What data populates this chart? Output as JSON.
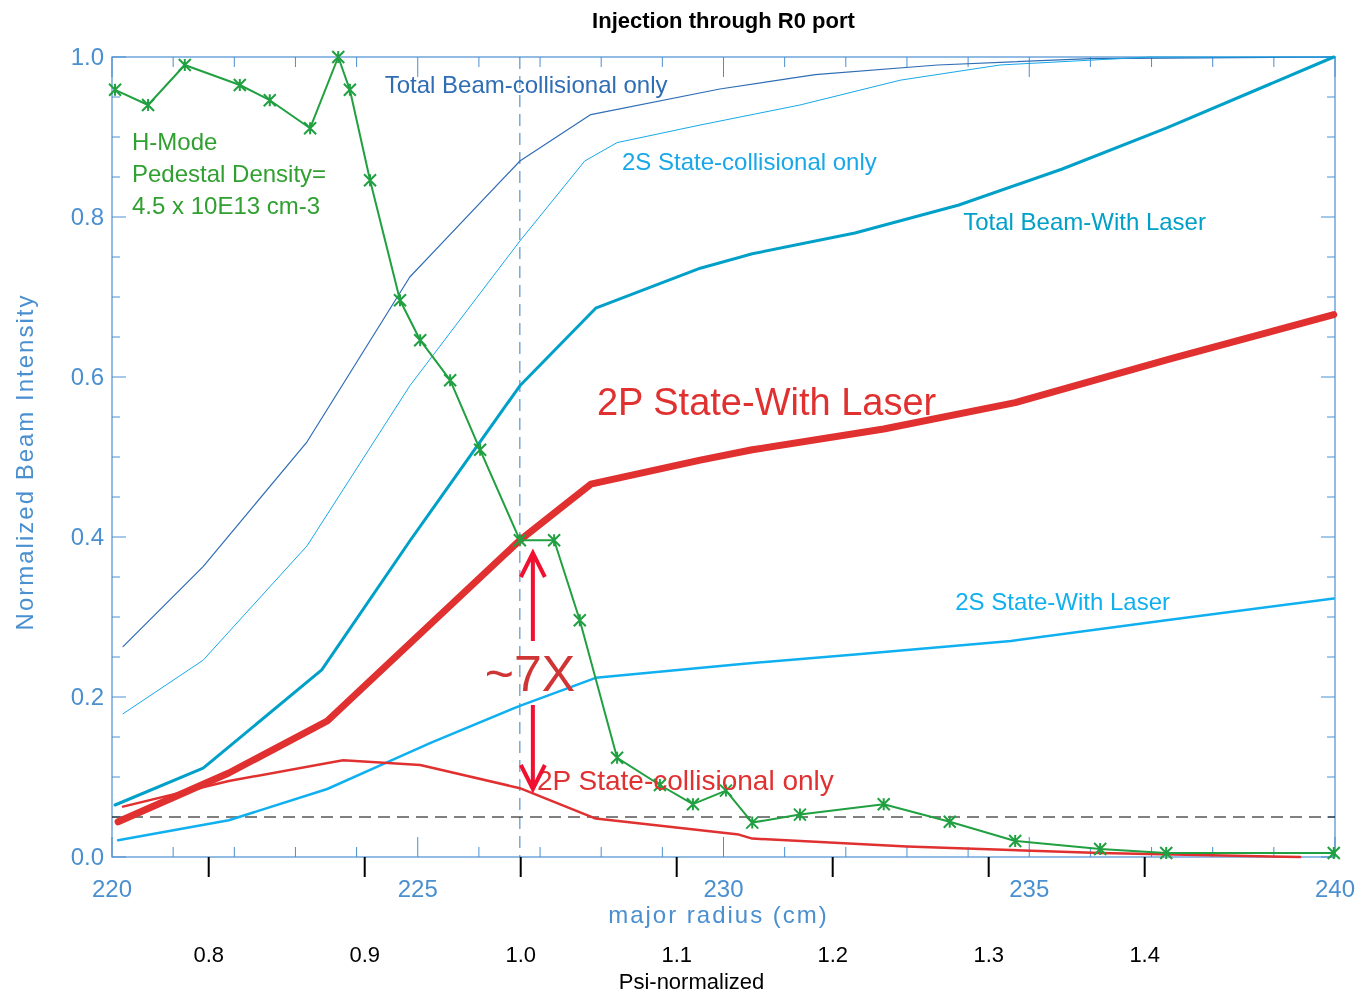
{
  "chart_data": {
    "type": "line",
    "title": "Injection through R0 port",
    "xlabel": "major radius (cm)",
    "ylabel": "Normalized Beam Intensity",
    "x2label": "Psi-normalized",
    "xlim": [
      220,
      240
    ],
    "xticks": [
      220,
      {
        "value": 221,
        "label": null
      },
      {
        "value": 222,
        "label": null
      },
      {
        "value": 223,
        "label": null
      },
      {
        "value": 224,
        "label": null
      },
      225,
      {
        "value": 226,
        "label": null
      },
      {
        "value": 227,
        "label": null
      },
      {
        "value": 228,
        "label": null
      },
      {
        "value": 229,
        "label": null
      },
      230,
      {
        "value": 231,
        "label": null
      },
      {
        "value": 232,
        "label": null
      },
      {
        "value": 233,
        "label": null
      },
      {
        "value": 234,
        "label": null
      },
      235,
      {
        "value": 236,
        "label": null
      },
      {
        "value": 237,
        "label": null
      },
      {
        "value": 238,
        "label": null
      },
      {
        "value": 239,
        "label": null
      },
      240
    ],
    "x2lim": [
      0.738,
      1.522
    ],
    "x2ticks": [
      {
        "value": 0.8,
        "label": "0.8"
      },
      {
        "value": 0.9,
        "label": "0.9"
      },
      {
        "value": 1.0,
        "label": "1.0"
      },
      {
        "value": 1.1,
        "label": "1.1"
      },
      {
        "value": 1.2,
        "label": "1.2"
      },
      {
        "value": 1.3,
        "label": "1.3"
      },
      {
        "value": 1.4,
        "label": "1.4"
      }
    ],
    "ylim": [
      0,
      1
    ],
    "yticks": [
      {
        "value": 0,
        "label": "0.0"
      },
      {
        "value": 0.05,
        "label": null
      },
      {
        "value": 0.1,
        "label": null
      },
      {
        "value": 0.15,
        "label": null
      },
      {
        "value": 0.2,
        "label": "0.2"
      },
      {
        "value": 0.25,
        "label": null
      },
      {
        "value": 0.3,
        "label": null
      },
      {
        "value": 0.35,
        "label": null
      },
      {
        "value": 0.4,
        "label": "0.4"
      },
      {
        "value": 0.45,
        "label": null
      },
      {
        "value": 0.5,
        "label": null
      },
      {
        "value": 0.55,
        "label": null
      },
      {
        "value": 0.6,
        "label": "0.6"
      },
      {
        "value": 0.65,
        "label": null
      },
      {
        "value": 0.7,
        "label": null
      },
      {
        "value": 0.75,
        "label": null
      },
      {
        "value": 0.8,
        "label": "0.8"
      },
      {
        "value": 0.85,
        "label": null
      },
      {
        "value": 0.9,
        "label": null
      },
      {
        "value": 0.95,
        "label": null
      },
      {
        "value": 1.0,
        "label": "1.0"
      }
    ],
    "grid": false,
    "marker": "none",
    "line_style": "solid",
    "series": [
      {
        "name": "Total Beam-collisional only",
        "color": "#2f6db5",
        "x": [
          220.18,
          221.49,
          223.19,
          224.87,
          226.67,
          227.83,
          229.94,
          231.5,
          233.5,
          236,
          240
        ],
        "values": [
          0.263,
          0.363,
          0.519,
          0.725,
          0.87,
          0.928,
          0.96,
          0.978,
          0.99,
          0.998,
          1.0
        ]
      },
      {
        "name": "2S State-collisional only",
        "color": "#18a8e8",
        "x": [
          220.18,
          221.49,
          223.19,
          224.87,
          226.67,
          227.73,
          228.26,
          229.62,
          231.25,
          232.89,
          234.52,
          236.97,
          240
        ],
        "values": [
          0.179,
          0.246,
          0.389,
          0.589,
          0.77,
          0.87,
          0.893,
          0.915,
          0.94,
          0.971,
          0.99,
          1.0,
          1.0
        ]
      },
      {
        "name": "Total Beam-With Laser",
        "color": "#00a0c8",
        "x": [
          220.05,
          221.49,
          223.43,
          224.87,
          226.67,
          227.91,
          229.62,
          230.47,
          232.15,
          233.85,
          235.54,
          237.24,
          239.98
        ],
        "values": [
          0.065,
          0.111,
          0.234,
          0.395,
          0.589,
          0.686,
          0.736,
          0.754,
          0.78,
          0.815,
          0.86,
          0.911,
          1.0
        ]
      },
      {
        "name": "2P State-With Laser",
        "color": "#e03030",
        "x": [
          220.1,
          221.91,
          223.52,
          225.04,
          226.67,
          227.83,
          229.62,
          230.47,
          232.62,
          234.77,
          237.32,
          239.98
        ],
        "values": [
          0.044,
          0.105,
          0.17,
          0.279,
          0.396,
          0.466,
          0.496,
          0.509,
          0.535,
          0.568,
          0.623,
          0.678
        ]
      },
      {
        "name": "2S State-With Laser",
        "color": "#10b0f0",
        "x": [
          220.1,
          221.91,
          223.52,
          225.22,
          226.67,
          227.91,
          230.25,
          232.15,
          234.7,
          237.24,
          239.98
        ],
        "values": [
          0.021,
          0.046,
          0.085,
          0.143,
          0.189,
          0.224,
          0.241,
          0.253,
          0.27,
          0.296,
          0.323
        ]
      },
      {
        "name": "2P State-collisional only",
        "color": "#e03030",
        "x": [
          220.18,
          221.91,
          223.78,
          225.04,
          226.67,
          227.91,
          230.25,
          230.47,
          233.0,
          236.16,
          239.43
        ],
        "values": [
          0.063,
          0.095,
          0.121,
          0.115,
          0.086,
          0.048,
          0.028,
          0.023,
          0.013,
          0.005,
          0.0
        ]
      },
      {
        "color": "#20a040",
        "marker": "cross",
        "x": [
          220.05,
          220.59,
          221.19,
          222.09,
          222.58,
          223.24,
          223.7,
          223.89,
          224.22,
          224.71,
          225.04,
          225.53,
          226.02,
          226.67,
          227.23,
          227.65,
          228.26,
          228.96,
          229.5,
          230.04,
          230.47,
          231.25,
          232.62,
          233.7,
          234.77,
          236.16,
          237.24,
          239.98
        ],
        "values": [
          0.959,
          0.94,
          0.99,
          0.965,
          0.946,
          0.911,
          1.0,
          0.959,
          0.846,
          0.696,
          0.646,
          0.596,
          0.509,
          0.396,
          0.396,
          0.296,
          0.124,
          0.09,
          0.066,
          0.083,
          0.043,
          0.053,
          0.066,
          0.044,
          0.02,
          0.01,
          0.005,
          0.005
        ]
      }
    ],
    "ref_lines": [
      {
        "axis": "x",
        "value": 226.67,
        "color": "#3a7ac0",
        "line_style": "dashed"
      },
      {
        "axis": "y",
        "value": 0.05,
        "color": "#000000",
        "line_style": "dashed"
      }
    ],
    "annotations": [
      "H-Mode\nPedestal Density=\n4.5 x 10E13 cm-3",
      {
        "text": "~7X",
        "x": 226.67,
        "y": 0.23
      }
    ]
  }
}
